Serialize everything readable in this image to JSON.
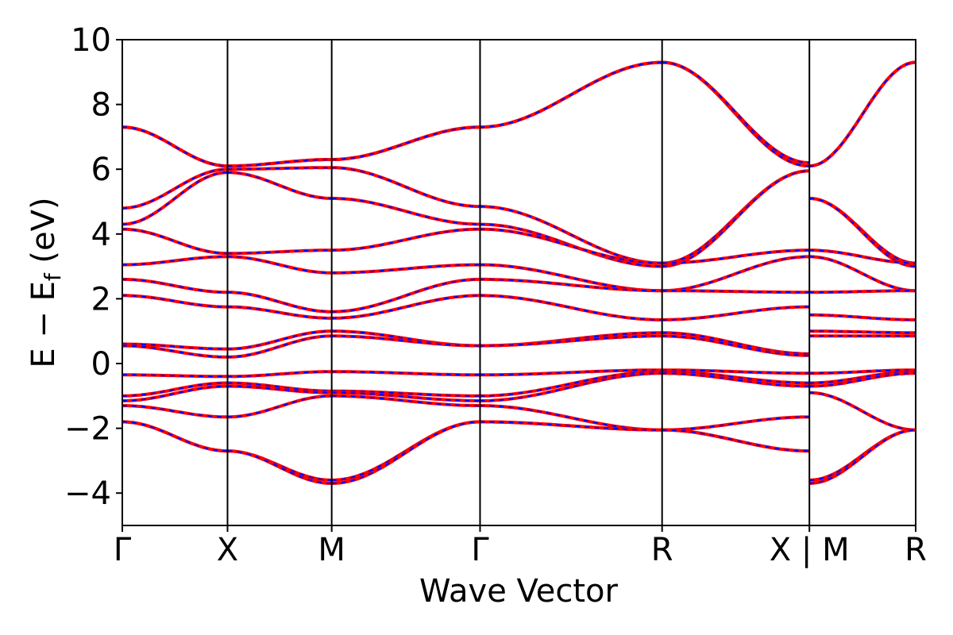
{
  "chart_data": {
    "type": "line",
    "title": "",
    "xlabel": "Wave Vector",
    "ylabel": "E − E",
    "ylabel_subscript": "f",
    "ylabel_unit": " (eV)",
    "ylim": [
      -5,
      10
    ],
    "yticks": [
      -4,
      -2,
      0,
      2,
      4,
      6,
      8,
      10
    ],
    "ytick_labels": [
      "−4",
      "−2",
      "0",
      "2",
      "4",
      "6",
      "8",
      "10"
    ],
    "xlim": [
      0,
      7.54
    ],
    "kpoint_positions": [
      0,
      1.0,
      1.99,
      3.4,
      5.13,
      6.53,
      7.54
    ],
    "kpoint_labels": [
      "Γ",
      "X",
      "M",
      "Γ",
      "R",
      "X | M",
      "R"
    ],
    "grid": false,
    "colors": {
      "red_series": "#ff0000",
      "blue_series": "#0000ff",
      "frame": "#000000"
    },
    "series_style": "red solid lines overlaid with blue dashed lines (identical bands)",
    "series": [
      {
        "segments": [
          {
            "x": [
              0,
              1.0
            ],
            "y": [
              7.3,
              6.1
            ]
          },
          {
            "x": [
              1.0,
              1.99
            ],
            "y": [
              6.1,
              6.3
            ]
          },
          {
            "x": [
              1.99,
              3.4
            ],
            "y": [
              6.3,
              7.3
            ]
          },
          {
            "x": [
              3.4,
              5.13
            ],
            "y": [
              7.3,
              9.3
            ]
          },
          {
            "x": [
              5.13,
              6.53
            ],
            "y": [
              9.3,
              6.1
            ]
          },
          {
            "x": [
              6.53,
              7.54
            ],
            "y": [
              6.1,
              9.3
            ]
          }
        ]
      },
      {
        "segments": [
          {
            "x": [
              0,
              1.0
            ],
            "y": [
              7.3,
              6.1
            ]
          },
          {
            "x": [
              1.0,
              1.99
            ],
            "y": [
              6.1,
              6.3
            ]
          },
          {
            "x": [
              1.99,
              3.4
            ],
            "y": [
              6.3,
              7.3
            ]
          },
          {
            "x": [
              3.4,
              5.13
            ],
            "y": [
              7.3,
              9.3
            ]
          },
          {
            "x": [
              5.13,
              6.53
            ],
            "y": [
              9.3,
              6.2
            ]
          },
          {
            "x": [
              6.53,
              7.54
            ],
            "y": [
              6.1,
              9.3
            ]
          }
        ]
      },
      {
        "segments": [
          {
            "x": [
              0,
              1.0
            ],
            "y": [
              4.8,
              6.0
            ]
          },
          {
            "x": [
              1.0,
              1.99
            ],
            "y": [
              6.0,
              6.05
            ]
          },
          {
            "x": [
              1.99,
              3.4
            ],
            "y": [
              6.05,
              4.85
            ]
          },
          {
            "x": [
              3.4,
              5.13
            ],
            "y": [
              4.85,
              3.1
            ]
          },
          {
            "x": [
              5.13,
              6.53
            ],
            "y": [
              3.1,
              5.95
            ]
          },
          {
            "x": [
              6.53,
              7.54
            ],
            "y": [
              5.1,
              3.1
            ]
          }
        ]
      },
      {
        "segments": [
          {
            "x": [
              0,
              1.0
            ],
            "y": [
              4.3,
              5.9
            ]
          },
          {
            "x": [
              1.0,
              1.99
            ],
            "y": [
              5.9,
              5.1
            ]
          },
          {
            "x": [
              1.99,
              3.4
            ],
            "y": [
              5.1,
              4.3
            ]
          },
          {
            "x": [
              3.4,
              5.13
            ],
            "y": [
              4.3,
              3.0
            ]
          },
          {
            "x": [
              5.13,
              6.53
            ],
            "y": [
              3.0,
              5.95
            ]
          },
          {
            "x": [
              6.53,
              7.54
            ],
            "y": [
              5.1,
              3.0
            ]
          }
        ]
      },
      {
        "segments": [
          {
            "x": [
              0,
              1.0
            ],
            "y": [
              4.15,
              3.4
            ]
          },
          {
            "x": [
              1.0,
              1.99
            ],
            "y": [
              3.4,
              3.5
            ]
          },
          {
            "x": [
              1.99,
              3.4
            ],
            "y": [
              3.5,
              4.15
            ]
          },
          {
            "x": [
              3.4,
              5.13
            ],
            "y": [
              4.15,
              3.1
            ]
          },
          {
            "x": [
              5.13,
              6.53
            ],
            "y": [
              3.1,
              3.5
            ]
          },
          {
            "x": [
              6.53,
              7.54
            ],
            "y": [
              3.5,
              3.1
            ]
          }
        ]
      },
      {
        "segments": [
          {
            "x": [
              0,
              1.0
            ],
            "y": [
              3.05,
              3.3
            ]
          },
          {
            "x": [
              1.0,
              1.99
            ],
            "y": [
              3.3,
              2.8
            ]
          },
          {
            "x": [
              1.99,
              3.4
            ],
            "y": [
              2.8,
              3.05
            ]
          },
          {
            "x": [
              3.4,
              5.13
            ],
            "y": [
              3.05,
              2.25
            ]
          },
          {
            "x": [
              5.13,
              6.53
            ],
            "y": [
              2.25,
              3.3
            ]
          },
          {
            "x": [
              6.53,
              7.54
            ],
            "y": [
              3.3,
              2.25
            ]
          }
        ]
      },
      {
        "segments": [
          {
            "x": [
              0,
              1.0
            ],
            "y": [
              2.6,
              2.2
            ]
          },
          {
            "x": [
              1.0,
              1.99
            ],
            "y": [
              2.2,
              1.6
            ]
          },
          {
            "x": [
              1.99,
              3.4
            ],
            "y": [
              1.6,
              2.6
            ]
          },
          {
            "x": [
              3.4,
              5.13
            ],
            "y": [
              2.6,
              2.25
            ]
          },
          {
            "x": [
              5.13,
              6.53
            ],
            "y": [
              2.25,
              2.2
            ]
          },
          {
            "x": [
              6.53,
              7.54
            ],
            "y": [
              2.2,
              2.25
            ]
          }
        ]
      },
      {
        "segments": [
          {
            "x": [
              0,
              1.0
            ],
            "y": [
              2.1,
              1.75
            ]
          },
          {
            "x": [
              1.0,
              1.99
            ],
            "y": [
              1.75,
              1.4
            ]
          },
          {
            "x": [
              1.99,
              3.4
            ],
            "y": [
              1.4,
              2.1
            ]
          },
          {
            "x": [
              3.4,
              5.13
            ],
            "y": [
              2.1,
              1.35
            ]
          },
          {
            "x": [
              5.13,
              6.53
            ],
            "y": [
              1.35,
              1.75
            ]
          },
          {
            "x": [
              6.53,
              7.54
            ],
            "y": [
              1.5,
              1.35
            ]
          }
        ]
      },
      {
        "segments": [
          {
            "x": [
              0,
              1.0
            ],
            "y": [
              0.6,
              0.45
            ]
          },
          {
            "x": [
              1.0,
              1.99
            ],
            "y": [
              0.45,
              1.0
            ]
          },
          {
            "x": [
              1.99,
              3.4
            ],
            "y": [
              1.0,
              0.55
            ]
          },
          {
            "x": [
              3.4,
              5.13
            ],
            "y": [
              0.55,
              0.95
            ]
          },
          {
            "x": [
              5.13,
              6.53
            ],
            "y": [
              0.95,
              0.3
            ]
          },
          {
            "x": [
              6.53,
              7.54
            ],
            "y": [
              1.0,
              0.95
            ]
          }
        ]
      },
      {
        "segments": [
          {
            "x": [
              0,
              1.0
            ],
            "y": [
              0.55,
              0.2
            ]
          },
          {
            "x": [
              1.0,
              1.99
            ],
            "y": [
              0.2,
              0.85
            ]
          },
          {
            "x": [
              1.99,
              3.4
            ],
            "y": [
              0.85,
              0.55
            ]
          },
          {
            "x": [
              3.4,
              5.13
            ],
            "y": [
              0.55,
              0.85
            ]
          },
          {
            "x": [
              5.13,
              6.53
            ],
            "y": [
              0.85,
              0.25
            ]
          },
          {
            "x": [
              6.53,
              7.54
            ],
            "y": [
              0.85,
              0.85
            ]
          }
        ]
      },
      {
        "segments": [
          {
            "x": [
              0,
              1.0
            ],
            "y": [
              -0.35,
              -0.4
            ]
          },
          {
            "x": [
              1.0,
              1.99
            ],
            "y": [
              -0.4,
              -0.25
            ]
          },
          {
            "x": [
              1.99,
              3.4
            ],
            "y": [
              -0.25,
              -0.35
            ]
          },
          {
            "x": [
              3.4,
              5.13
            ],
            "y": [
              -0.35,
              -0.2
            ]
          },
          {
            "x": [
              5.13,
              6.53
            ],
            "y": [
              -0.2,
              -0.3
            ]
          },
          {
            "x": [
              6.53,
              7.54
            ],
            "y": [
              -0.3,
              -0.2
            ]
          }
        ]
      },
      {
        "segments": [
          {
            "x": [
              0,
              1.0
            ],
            "y": [
              -1.0,
              -0.6
            ]
          },
          {
            "x": [
              1.0,
              1.99
            ],
            "y": [
              -0.6,
              -0.85
            ]
          },
          {
            "x": [
              1.99,
              3.4
            ],
            "y": [
              -0.85,
              -1.0
            ]
          },
          {
            "x": [
              3.4,
              5.13
            ],
            "y": [
              -1.0,
              -0.25
            ]
          },
          {
            "x": [
              5.13,
              6.53
            ],
            "y": [
              -0.25,
              -0.6
            ]
          },
          {
            "x": [
              6.53,
              7.54
            ],
            "y": [
              -0.6,
              -0.25
            ]
          }
        ]
      },
      {
        "segments": [
          {
            "x": [
              0,
              1.0
            ],
            "y": [
              -1.15,
              -0.7
            ]
          },
          {
            "x": [
              1.0,
              1.99
            ],
            "y": [
              -0.7,
              -0.9
            ]
          },
          {
            "x": [
              1.99,
              3.4
            ],
            "y": [
              -0.9,
              -1.15
            ]
          },
          {
            "x": [
              3.4,
              5.13
            ],
            "y": [
              -1.15,
              -0.3
            ]
          },
          {
            "x": [
              5.13,
              6.53
            ],
            "y": [
              -0.3,
              -0.7
            ]
          },
          {
            "x": [
              6.53,
              7.54
            ],
            "y": [
              -0.7,
              -0.3
            ]
          }
        ]
      },
      {
        "segments": [
          {
            "x": [
              0,
              1.0
            ],
            "y": [
              -1.3,
              -1.65
            ]
          },
          {
            "x": [
              1.0,
              1.99
            ],
            "y": [
              -1.65,
              -1.0
            ]
          },
          {
            "x": [
              1.99,
              3.4
            ],
            "y": [
              -1.0,
              -1.3
            ]
          },
          {
            "x": [
              3.4,
              5.13
            ],
            "y": [
              -1.3,
              -2.05
            ]
          },
          {
            "x": [
              5.13,
              6.53
            ],
            "y": [
              -2.05,
              -1.65
            ]
          },
          {
            "x": [
              6.53,
              7.54
            ],
            "y": [
              -0.9,
              -2.05
            ]
          }
        ]
      },
      {
        "segments": [
          {
            "x": [
              0,
              1.0
            ],
            "y": [
              -1.8,
              -2.7
            ]
          },
          {
            "x": [
              1.0,
              1.99
            ],
            "y": [
              -2.7,
              -3.6
            ]
          },
          {
            "x": [
              1.99,
              3.4
            ],
            "y": [
              -3.6,
              -1.8
            ]
          },
          {
            "x": [
              3.4,
              5.13
            ],
            "y": [
              -1.8,
              -2.05
            ]
          },
          {
            "x": [
              5.13,
              6.53
            ],
            "y": [
              -2.05,
              -2.7
            ]
          },
          {
            "x": [
              6.53,
              7.54
            ],
            "y": [
              -3.6,
              -2.05
            ]
          }
        ]
      },
      {
        "segments": [
          {
            "x": [
              0,
              1.0
            ],
            "y": [
              -1.8,
              -2.7
            ]
          },
          {
            "x": [
              1.0,
              1.99
            ],
            "y": [
              -2.7,
              -3.7
            ]
          },
          {
            "x": [
              1.99,
              3.4
            ],
            "y": [
              -3.7,
              -1.8
            ]
          },
          {
            "x": [
              3.4,
              5.13
            ],
            "y": [
              -1.8,
              -2.05
            ]
          },
          {
            "x": [
              5.13,
              6.53
            ],
            "y": [
              -2.05,
              -2.7
            ]
          },
          {
            "x": [
              6.53,
              7.54
            ],
            "y": [
              -3.7,
              -2.05
            ]
          }
        ]
      }
    ]
  }
}
